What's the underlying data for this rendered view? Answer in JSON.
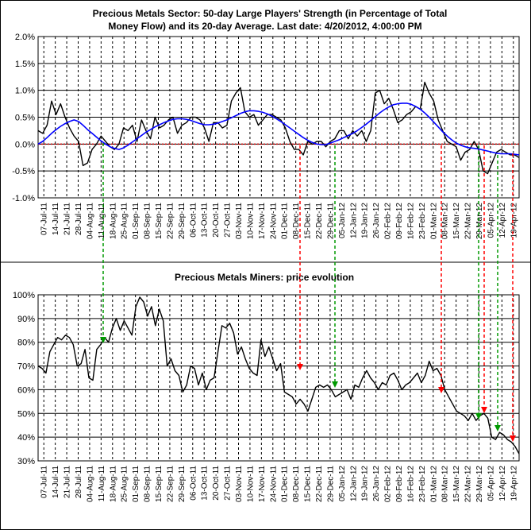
{
  "chart_data": [
    {
      "type": "line",
      "title": "Precious Metals Sector: 50-day Large Players' Strength (in Percentage of Total",
      "title_line2": "Money Flow) and its 20-day Average. Last date: 4/20/2012, 4:00:00 PM",
      "ylim": [
        -1.0,
        2.0
      ],
      "y_ticks": [
        "2.0%",
        "1.5%",
        "1.0%",
        "0.5%",
        "0.0%",
        "-0.5%",
        "-1.0%"
      ],
      "x_ticks": [
        "07-Jul-11",
        "14-Jul-11",
        "21-Jul-11",
        "28-Jul-11",
        "04-Aug-11",
        "11-Aug-11",
        "18-Aug-11",
        "25-Aug-11",
        "01-Sep-11",
        "08-Sep-11",
        "15-Sep-11",
        "22-Sep-11",
        "29-Sep-11",
        "06-Oct-11",
        "13-Oct-11",
        "20-Oct-11",
        "27-Oct-11",
        "03-Nov-11",
        "10-Nov-11",
        "17-Nov-11",
        "24-Nov-11",
        "01-Dec-11",
        "08-Dec-11",
        "15-Dec-11",
        "22-Dec-11",
        "29-Dec-11",
        "05-Jan-12",
        "12-Jan-12",
        "19-Jan-12",
        "26-Jan-12",
        "02-Feb-12",
        "09-Feb-12",
        "16-Feb-12",
        "23-Feb-12",
        "01-Mar-12",
        "08-Mar-12",
        "15-Mar-12",
        "22-Mar-12",
        "29-Mar-12",
        "05-Apr-12",
        "12-Apr-12",
        "19-Apr-12"
      ],
      "grid": "vertical-dashed, horizontal-solid",
      "zero_line": "dashed red",
      "series": [
        {
          "color": "#000000",
          "values": [
            0.25,
            0.2,
            0.35,
            0.8,
            0.55,
            0.75,
            0.5,
            0.3,
            0.15,
            0.05,
            -0.4,
            -0.35,
            -0.1,
            0.0,
            0.15,
            0.05,
            -0.05,
            -0.1,
            0.0,
            0.3,
            0.25,
            0.35,
            0.05,
            0.45,
            0.25,
            0.1,
            0.5,
            0.3,
            0.35,
            0.45,
            0.5,
            0.2,
            0.35,
            0.4,
            0.5,
            0.5,
            0.45,
            0.3,
            0.05,
            0.4,
            0.4,
            0.3,
            0.35,
            0.8,
            0.95,
            1.05,
            0.6,
            0.5,
            0.55,
            0.35,
            0.45,
            0.55,
            0.55,
            0.5,
            0.45,
            0.3,
            0.05,
            -0.1,
            -0.1,
            -0.2,
            0.05,
            0.0,
            0.05,
            0.05,
            -0.05,
            0.05,
            0.1,
            0.25,
            0.25,
            0.1,
            0.25,
            0.15,
            0.25,
            0.05,
            0.25,
            0.95,
            1.0,
            0.75,
            0.85,
            0.65,
            0.4,
            0.45,
            0.55,
            0.6,
            0.7,
            0.65,
            1.15,
            0.95,
            0.8,
            0.45,
            0.25,
            0.05,
            0.0,
            -0.05,
            -0.3,
            -0.15,
            -0.1,
            0.05,
            -0.1,
            -0.5,
            -0.55,
            -0.35,
            -0.15,
            -0.1,
            -0.15,
            -0.2,
            -0.2,
            -0.25
          ]
        },
        {
          "color": "#0000ff",
          "values": [
            0.0,
            0.05,
            0.12,
            0.2,
            0.27,
            0.33,
            0.38,
            0.42,
            0.45,
            0.42,
            0.35,
            0.27,
            0.2,
            0.13,
            0.06,
            0.0,
            -0.05,
            -0.08,
            -0.1,
            -0.07,
            -0.02,
            0.04,
            0.1,
            0.16,
            0.22,
            0.27,
            0.32,
            0.36,
            0.4,
            0.43,
            0.46,
            0.47,
            0.47,
            0.46,
            0.44,
            0.41,
            0.38,
            0.36,
            0.36,
            0.37,
            0.39,
            0.42,
            0.45,
            0.49,
            0.53,
            0.57,
            0.6,
            0.62,
            0.62,
            0.61,
            0.59,
            0.56,
            0.52,
            0.47,
            0.42,
            0.36,
            0.3,
            0.24,
            0.18,
            0.12,
            0.07,
            0.03,
            0.0,
            -0.01,
            -0.01,
            0.02,
            0.05,
            0.08,
            0.12,
            0.16,
            0.2,
            0.25,
            0.31,
            0.37,
            0.44,
            0.51,
            0.58,
            0.64,
            0.69,
            0.73,
            0.75,
            0.76,
            0.76,
            0.74,
            0.7,
            0.65,
            0.58,
            0.5,
            0.41,
            0.32,
            0.23,
            0.15,
            0.08,
            0.02,
            -0.02,
            -0.05,
            -0.07,
            -0.08,
            -0.09,
            -0.11,
            -0.13,
            -0.15,
            -0.17,
            -0.18,
            -0.18,
            -0.18,
            -0.19,
            -0.2
          ]
        }
      ]
    },
    {
      "type": "line",
      "title": "Precious Metals Miners: price evolution",
      "ylim": [
        30,
        100
      ],
      "y_ticks": [
        "100%",
        "90%",
        "80%",
        "70%",
        "60%",
        "50%",
        "40%",
        "30%"
      ],
      "x_ticks": [
        "07-Jul-11",
        "14-Jul-11",
        "21-Jul-11",
        "28-Jul-11",
        "04-Aug-11",
        "11-Aug-11",
        "18-Aug-11",
        "25-Aug-11",
        "01-Sep-11",
        "08-Sep-11",
        "15-Sep-11",
        "22-Sep-11",
        "29-Sep-11",
        "06-Oct-11",
        "13-Oct-11",
        "20-Oct-11",
        "27-Oct-11",
        "03-Nov-11",
        "10-Nov-11",
        "17-Nov-11",
        "24-Nov-11",
        "01-Dec-11",
        "08-Dec-11",
        "15-Dec-11",
        "22-Dec-11",
        "29-Dec-11",
        "05-Jan-12",
        "12-Jan-12",
        "19-Jan-12",
        "26-Jan-12",
        "02-Feb-12",
        "09-Feb-12",
        "16-Feb-12",
        "23-Feb-12",
        "01-Mar-12",
        "08-Mar-12",
        "15-Mar-12",
        "22-Mar-12",
        "29-Mar-12",
        "05-Apr-12",
        "12-Apr-12",
        "19-Apr-12"
      ],
      "grid": "vertical-dashed, horizontal-solid",
      "series": [
        {
          "color": "#000000",
          "values": [
            70,
            69,
            67,
            76,
            79,
            82,
            81,
            83,
            82,
            79,
            70,
            71,
            77,
            65,
            64,
            77,
            79,
            82,
            80,
            86,
            90,
            85,
            89,
            86,
            83,
            95,
            99,
            97,
            91,
            95,
            87,
            94,
            89,
            70,
            73,
            68,
            66,
            59,
            62,
            70,
            69,
            62,
            67,
            60,
            64,
            65,
            76,
            87,
            86,
            88,
            84,
            75,
            78,
            73,
            69,
            67,
            66,
            81,
            74,
            78,
            73,
            68,
            71,
            59,
            58,
            57,
            54,
            56,
            54,
            51,
            56,
            61,
            62,
            61,
            62,
            60,
            57,
            58,
            59,
            60,
            56,
            62,
            61,
            65,
            68,
            65,
            63,
            60,
            63,
            62,
            66,
            67,
            64,
            60,
            62,
            63,
            65,
            67,
            63,
            66,
            72,
            68,
            69,
            66,
            60,
            57,
            54,
            51,
            50,
            49,
            47,
            50,
            47,
            49,
            50,
            48,
            40,
            39,
            42,
            41,
            39,
            38,
            36,
            33
          ]
        }
      ]
    }
  ]
}
